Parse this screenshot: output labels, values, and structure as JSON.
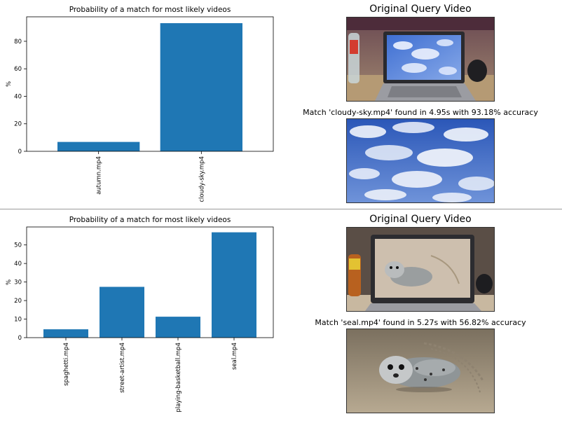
{
  "panels": [
    {
      "query_heading": "Original Query Video",
      "match_caption": "Match 'cloudy-sky.mp4' found in 4.95s with 93.18% accuracy",
      "query_frame_icon": "laptop-showing-cloudy-sky-photo",
      "match_frame_icon": "cloudy-sky-photo"
    },
    {
      "query_heading": "Original Query Video",
      "match_caption": "Match 'seal.mp4' found in 5.27s with 56.82% accuracy",
      "query_frame_icon": "laptop-showing-seal-photo",
      "match_frame_icon": "seal-on-beach-photo"
    }
  ],
  "chart_data": [
    {
      "type": "bar",
      "title": "Probability of a match for most likely videos",
      "ylabel": "%",
      "xlabel": "",
      "categories": [
        "autumn.mp4",
        "cloudy-sky.mp4"
      ],
      "values": [
        6.82,
        93.18
      ],
      "ylim": [
        0,
        97.8
      ],
      "yticks": [
        0,
        20,
        40,
        60,
        80
      ],
      "bar_color": "#1f77b4",
      "grid": false
    },
    {
      "type": "bar",
      "title": "Probability of a match for most likely videos",
      "ylabel": "%",
      "xlabel": "",
      "categories": [
        "spaghetti.mp4",
        "street-artist.mp4",
        "playing-basketball.mp4",
        "seal.mp4"
      ],
      "values": [
        4.5,
        27.4,
        11.3,
        56.82
      ],
      "ylim": [
        0,
        59.7
      ],
      "yticks": [
        0,
        10,
        20,
        30,
        40,
        50
      ],
      "bar_color": "#1f77b4",
      "grid": false
    }
  ]
}
